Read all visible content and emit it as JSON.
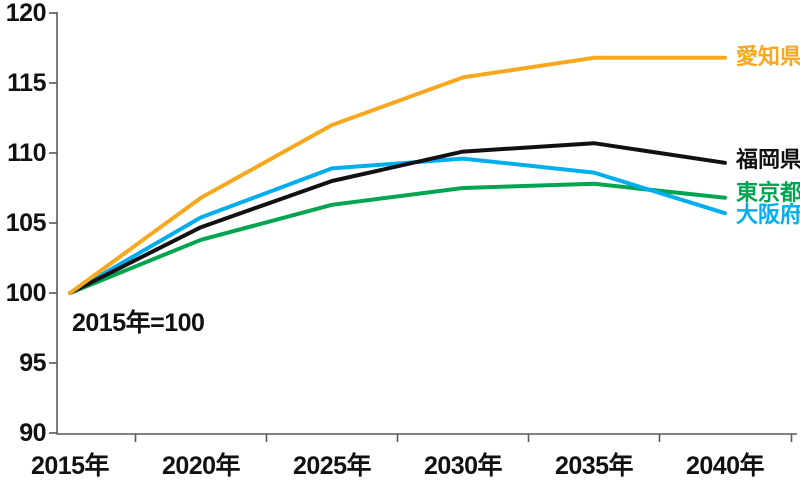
{
  "chart_data": {
    "type": "line",
    "title": "",
    "xlabel": "",
    "ylabel": "",
    "annotation": "2015年=100",
    "ylim": [
      90,
      120
    ],
    "yticks": [
      120,
      115,
      110,
      105,
      100,
      95,
      90
    ],
    "grid": false,
    "legend_position": "right-of-line-ends",
    "axis_color": "#595959",
    "x": [
      "2015年",
      "2020年",
      "2025年",
      "2030年",
      "2035年",
      "2040年"
    ],
    "series": [
      {
        "name": "愛知県",
        "color": "#F8A81D",
        "values": [
          100,
          106.8,
          112.0,
          115.4,
          116.8,
          116.8
        ]
      },
      {
        "name": "福岡県",
        "color": "#111111",
        "values": [
          100,
          104.7,
          108.0,
          110.1,
          110.7,
          109.3
        ]
      },
      {
        "name": "東京都",
        "color": "#00A551",
        "values": [
          100,
          103.8,
          106.3,
          107.5,
          107.8,
          106.8
        ]
      },
      {
        "name": "大阪府",
        "color": "#00AEEF",
        "values": [
          100,
          105.4,
          108.9,
          109.6,
          108.6,
          105.7
        ]
      }
    ]
  }
}
